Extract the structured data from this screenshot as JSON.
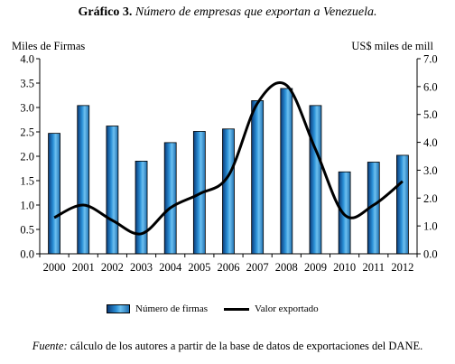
{
  "title": {
    "bold": "Gráfico 3.",
    "italic": "Número de empresas que exportan a Venezuela."
  },
  "source": {
    "italic": "Fuente:",
    "text": "cálculo de los autores  a partir de la base de datos de exportaciones del DANE."
  },
  "colors": {
    "bar_dark": "#0a3a78",
    "bar_mid": "#2a8fd6",
    "bar_light": "#6cc0f0",
    "line": "#000000"
  },
  "chart_data": {
    "type": "bar",
    "categories": [
      "2000",
      "2001",
      "2002",
      "2003",
      "2004",
      "2005",
      "2006",
      "2007",
      "2008",
      "2009",
      "2010",
      "2011",
      "2012"
    ],
    "series": [
      {
        "name": "Número de firmas",
        "type": "bar",
        "axis": "left",
        "values": [
          2.47,
          3.04,
          2.62,
          1.9,
          2.28,
          2.51,
          2.56,
          3.14,
          3.39,
          3.04,
          1.68,
          1.88,
          2.02
        ]
      },
      {
        "name": "Valor exportado",
        "type": "line",
        "axis": "right",
        "values": [
          1.3,
          1.75,
          1.2,
          0.72,
          1.65,
          2.15,
          2.8,
          5.4,
          6.05,
          3.75,
          1.4,
          1.75,
          2.6
        ]
      }
    ],
    "ylabel_left": "Miles de Firmas",
    "ylabel_right": "US$ miles de mill",
    "ylim_left": [
      0,
      4.0
    ],
    "ylim_right": [
      0,
      7.0
    ],
    "yticks_left": [
      "0.0",
      "0.5",
      "1.0",
      "1.5",
      "2.0",
      "2.5",
      "3.0",
      "3.5",
      "4.0"
    ],
    "yticks_right": [
      "0.0",
      "1.0",
      "2.0",
      "3.0",
      "4.0",
      "5.0",
      "6.0",
      "7.0"
    ],
    "grid": false,
    "legend_position": "bottom"
  }
}
